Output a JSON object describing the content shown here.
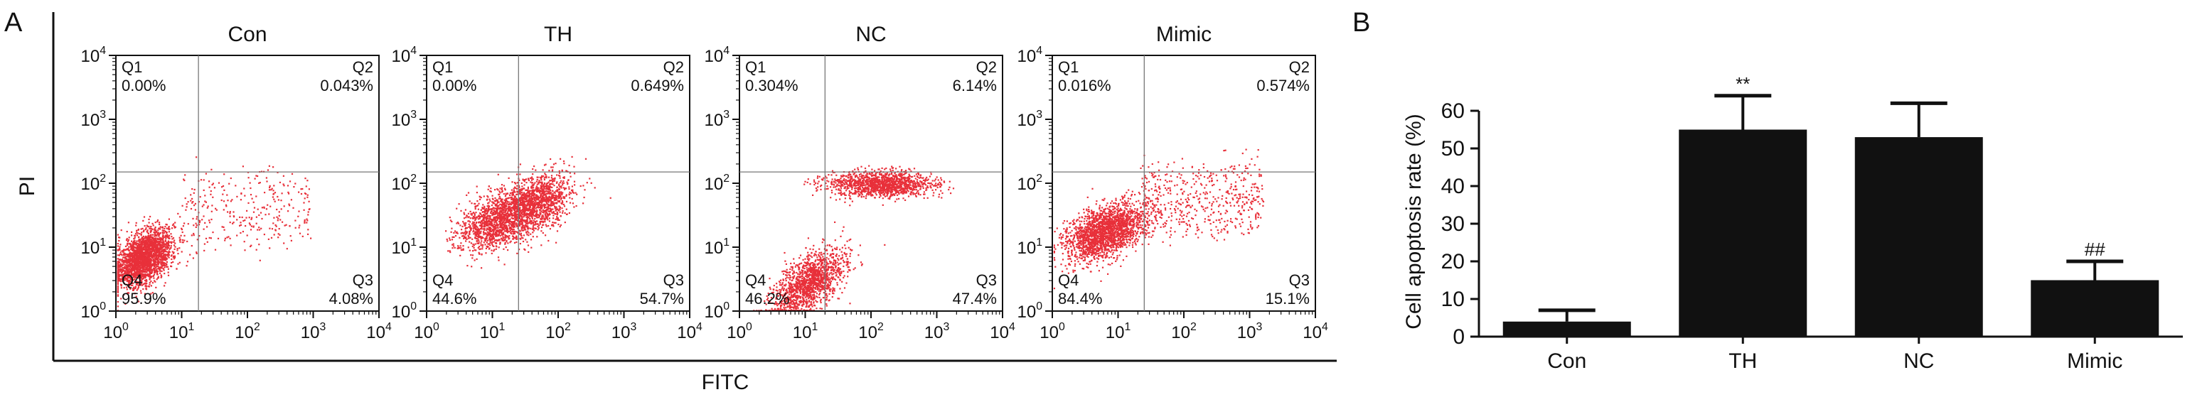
{
  "figure": {
    "panel_a_letter": "A",
    "panel_b_letter": "B",
    "colors": {
      "dot": "#e8303a",
      "axis": "#111111",
      "bar": "#111111",
      "gate": "#777777"
    }
  },
  "chart_data": [
    {
      "type": "scatter",
      "panel": "A",
      "xlabel": "FITC",
      "ylabel": "PI",
      "x_scale": "log",
      "y_scale": "log",
      "xlim": [
        1,
        10000
      ],
      "ylim": [
        1,
        10000
      ],
      "x_ticks": [
        {
          "base": "10",
          "exp": "0"
        },
        {
          "base": "10",
          "exp": "1"
        },
        {
          "base": "10",
          "exp": "2"
        },
        {
          "base": "10",
          "exp": "3"
        },
        {
          "base": "10",
          "exp": "4"
        }
      ],
      "y_ticks": [
        {
          "base": "10",
          "exp": "0"
        },
        {
          "base": "10",
          "exp": "1"
        },
        {
          "base": "10",
          "exp": "2"
        },
        {
          "base": "10",
          "exp": "3"
        },
        {
          "base": "10",
          "exp": "4"
        }
      ],
      "plots": [
        {
          "title": "Con",
          "gate": {
            "x": 18,
            "y": 150
          },
          "quadrants": {
            "Q1": {
              "label": "Q1",
              "value": "0.00%"
            },
            "Q2": {
              "label": "Q2",
              "value": "0.043%"
            },
            "Q3": {
              "label": "Q3",
              "value": "4.08%"
            },
            "Q4": {
              "label": "Q4",
              "value": "95.9%"
            }
          }
        },
        {
          "title": "TH",
          "gate": {
            "x": 25,
            "y": 150
          },
          "quadrants": {
            "Q1": {
              "label": "Q1",
              "value": "0.00%"
            },
            "Q2": {
              "label": "Q2",
              "value": "0.649%"
            },
            "Q3": {
              "label": "Q3",
              "value": "54.7%"
            },
            "Q4": {
              "label": "Q4",
              "value": "44.6%"
            }
          }
        },
        {
          "title": "NC",
          "gate": {
            "x": 20,
            "y": 150
          },
          "quadrants": {
            "Q1": {
              "label": "Q1",
              "value": "0.304%"
            },
            "Q2": {
              "label": "Q2",
              "value": "6.14%"
            },
            "Q3": {
              "label": "Q3",
              "value": "47.4%"
            },
            "Q4": {
              "label": "Q4",
              "value": "46.2%"
            }
          }
        },
        {
          "title": "Mimic",
          "gate": {
            "x": 25,
            "y": 150
          },
          "quadrants": {
            "Q1": {
              "label": "Q1",
              "value": "0.016%"
            },
            "Q2": {
              "label": "Q2",
              "value": "0.574%"
            },
            "Q3": {
              "label": "Q3",
              "value": "15.1%"
            },
            "Q4": {
              "label": "Q4",
              "value": "84.4%"
            }
          }
        }
      ]
    },
    {
      "type": "bar",
      "panel": "B",
      "ylabel": "Cell apoptosis rate (%)",
      "categories": [
        "Con",
        "TH",
        "NC",
        "Mimic"
      ],
      "values": [
        4,
        55,
        53,
        15
      ],
      "errors": [
        3,
        9,
        9,
        5
      ],
      "annotations": [
        "",
        "**",
        "",
        "##"
      ],
      "ylim": [
        0,
        60
      ],
      "y_ticks": [
        0,
        10,
        20,
        30,
        40,
        50,
        60
      ]
    }
  ]
}
